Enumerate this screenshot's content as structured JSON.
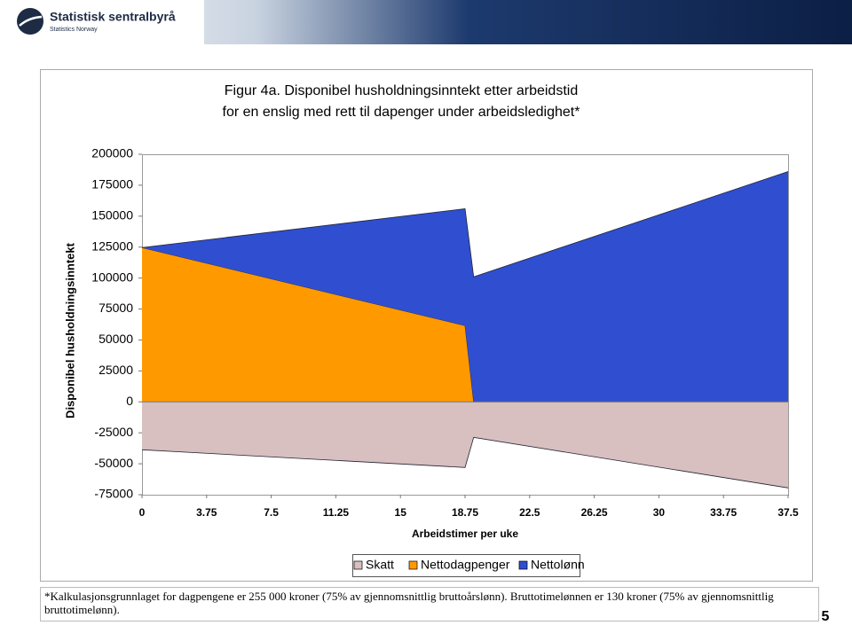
{
  "header": {
    "org": "Statistisk sentralbyrå",
    "org_en": "Statistics Norway"
  },
  "chart_data": {
    "type": "stacked-area",
    "title": [
      "Figur 4a. Disponibel husholdningsinntekt etter arbeidstid",
      "for en enslig med rett til dapenger under arbeidsledighet*"
    ],
    "xlabel": "Arbeidstimer per uke",
    "ylabel": "Disponibel husholdningsinntekt",
    "x": [
      0,
      18.75,
      19.25,
      37.5
    ],
    "series": [
      {
        "name": "Skatt",
        "color": "#d8bfc0",
        "values": [
          -38700,
          -53000,
          -28700,
          -69500
        ]
      },
      {
        "name": "Nettodagpenger",
        "color": "#ff9900",
        "values": [
          124600,
          61600,
          0,
          0
        ]
      },
      {
        "name": "Nettolønn",
        "color": "#2f4fd0",
        "values": [
          0,
          94400,
          101000,
          186000
        ]
      }
    ],
    "xlim": [
      0,
      37.5
    ],
    "xticks": [
      0,
      3.75,
      7.5,
      11.25,
      15,
      18.75,
      22.5,
      26.25,
      30,
      33.75,
      37.5
    ],
    "ylim": [
      -75000,
      200000
    ],
    "yticks": [
      -75000,
      -50000,
      -25000,
      0,
      25000,
      50000,
      75000,
      100000,
      125000,
      150000,
      175000,
      200000
    ],
    "legend": "bottom"
  },
  "footnote": "*Kalkulasjonsgrunnlaget for dagpengene er 255 000 kroner (75% av gjennomsnittlig bruttoårslønn). Bruttotimelønnen er 130 kroner (75% av gjennomsnittlig bruttotimelønn).",
  "page_number": "5"
}
